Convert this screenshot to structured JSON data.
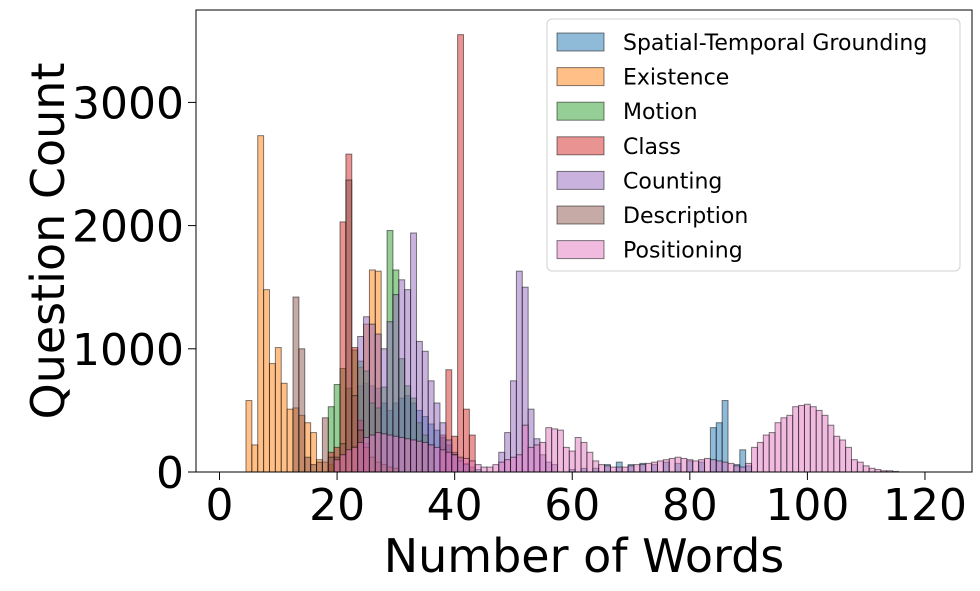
{
  "chart_data": {
    "type": "bar",
    "subtype": "overlaid-histogram",
    "xlabel": "Number of Words",
    "ylabel": "Question Count",
    "xlim": [
      -4,
      128
    ],
    "ylim": [
      0,
      3750
    ],
    "xticks": [
      0,
      20,
      40,
      60,
      80,
      100,
      120
    ],
    "yticks": [
      0,
      1000,
      2000,
      3000
    ],
    "bin_width": 1,
    "grid": false,
    "legend": {
      "placement": "top-right"
    },
    "series": [
      {
        "name": "Spatial-Temporal Grounding",
        "color": "#1f77b4",
        "bins": [
          [
            24,
            700
          ],
          [
            25,
            720
          ],
          [
            26,
            700
          ],
          [
            27,
            680
          ],
          [
            28,
            560
          ],
          [
            29,
            500
          ],
          [
            30,
            560
          ],
          [
            31,
            600
          ],
          [
            32,
            620
          ],
          [
            33,
            560
          ],
          [
            34,
            500
          ],
          [
            35,
            450
          ],
          [
            36,
            390
          ],
          [
            37,
            340
          ],
          [
            38,
            280
          ],
          [
            39,
            220
          ],
          [
            40,
            160
          ],
          [
            41,
            110
          ],
          [
            42,
            70
          ],
          [
            43,
            40
          ],
          [
            44,
            20
          ],
          [
            60,
            20
          ],
          [
            62,
            30
          ],
          [
            64,
            30
          ],
          [
            66,
            60
          ],
          [
            68,
            80
          ],
          [
            70,
            60
          ],
          [
            72,
            70
          ],
          [
            74,
            60
          ],
          [
            76,
            80
          ],
          [
            78,
            70
          ],
          [
            80,
            90
          ],
          [
            82,
            80
          ],
          [
            84,
            360
          ],
          [
            85,
            400
          ],
          [
            86,
            580
          ],
          [
            88,
            60
          ],
          [
            89,
            180
          ],
          [
            90,
            50
          ]
        ]
      },
      {
        "name": "Existence",
        "color": "#ff7f0e",
        "bins": [
          [
            5,
            580
          ],
          [
            6,
            220
          ],
          [
            7,
            2730
          ],
          [
            8,
            1480
          ],
          [
            9,
            880
          ],
          [
            10,
            1010
          ],
          [
            11,
            720
          ],
          [
            12,
            510
          ],
          [
            13,
            520
          ],
          [
            14,
            460
          ],
          [
            15,
            400
          ],
          [
            16,
            320
          ],
          [
            17,
            100
          ],
          [
            18,
            80
          ],
          [
            19,
            60
          ],
          [
            20,
            100
          ],
          [
            21,
            140
          ],
          [
            22,
            160
          ],
          [
            23,
            210
          ],
          [
            24,
            850
          ],
          [
            25,
            1200
          ],
          [
            26,
            1640
          ],
          [
            27,
            1630
          ]
        ]
      },
      {
        "name": "Motion",
        "color": "#2ca02c",
        "bins": [
          [
            19,
            530
          ],
          [
            20,
            710
          ],
          [
            21,
            840
          ],
          [
            22,
            680
          ],
          [
            23,
            990
          ],
          [
            24,
            900
          ],
          [
            25,
            820
          ],
          [
            26,
            560
          ],
          [
            27,
            520
          ],
          [
            28,
            690
          ],
          [
            29,
            1960
          ],
          [
            30,
            1640
          ],
          [
            31,
            920
          ],
          [
            32,
            700
          ],
          [
            33,
            600
          ],
          [
            34,
            400
          ],
          [
            35,
            300
          ],
          [
            36,
            220
          ]
        ]
      },
      {
        "name": "Class",
        "color": "#d62728",
        "bins": [
          [
            19,
            160
          ],
          [
            20,
            200
          ],
          [
            21,
            2030
          ],
          [
            22,
            2580
          ],
          [
            23,
            1010
          ],
          [
            24,
            420
          ],
          [
            25,
            230
          ],
          [
            38,
            300
          ],
          [
            39,
            830
          ],
          [
            40,
            290
          ],
          [
            41,
            3550
          ],
          [
            42,
            510
          ],
          [
            43,
            300
          ]
        ]
      },
      {
        "name": "Counting",
        "color": "#9467bd",
        "bins": [
          [
            24,
            1100
          ],
          [
            25,
            1260
          ],
          [
            26,
            1200
          ],
          [
            27,
            1120
          ],
          [
            28,
            1000
          ],
          [
            29,
            1220
          ],
          [
            30,
            1440
          ],
          [
            31,
            1560
          ],
          [
            32,
            1480
          ],
          [
            33,
            1940
          ],
          [
            34,
            1060
          ],
          [
            35,
            980
          ],
          [
            36,
            740
          ],
          [
            37,
            560
          ],
          [
            38,
            400
          ],
          [
            39,
            260
          ],
          [
            40,
            140
          ],
          [
            41,
            90
          ],
          [
            42,
            60
          ],
          [
            48,
            160
          ],
          [
            49,
            320
          ],
          [
            50,
            740
          ],
          [
            51,
            1630
          ],
          [
            52,
            1500
          ],
          [
            53,
            510
          ],
          [
            54,
            270
          ],
          [
            55,
            140
          ],
          [
            56,
            80
          ],
          [
            57,
            60
          ]
        ]
      },
      {
        "name": "Description",
        "color": "#8c564b",
        "bins": [
          [
            13,
            1420
          ],
          [
            14,
            1000
          ],
          [
            15,
            120
          ],
          [
            16,
            60
          ],
          [
            17,
            80
          ],
          [
            18,
            440
          ],
          [
            19,
            120
          ],
          [
            20,
            120
          ],
          [
            21,
            230
          ],
          [
            22,
            2370
          ],
          [
            23,
            620
          ],
          [
            24,
            340
          ],
          [
            25,
            200
          ],
          [
            26,
            120
          ],
          [
            27,
            80
          ],
          [
            28,
            60
          ],
          [
            29,
            40
          ],
          [
            30,
            30
          ]
        ]
      },
      {
        "name": "Positioning",
        "color": "#e377c2",
        "bins": [
          [
            20,
            100
          ],
          [
            21,
            140
          ],
          [
            22,
            180
          ],
          [
            23,
            200
          ],
          [
            24,
            240
          ],
          [
            25,
            280
          ],
          [
            26,
            300
          ],
          [
            27,
            320
          ],
          [
            28,
            310
          ],
          [
            29,
            300
          ],
          [
            30,
            290
          ],
          [
            31,
            280
          ],
          [
            32,
            270
          ],
          [
            33,
            260
          ],
          [
            34,
            250
          ],
          [
            35,
            240
          ],
          [
            36,
            220
          ],
          [
            37,
            200
          ],
          [
            38,
            180
          ],
          [
            39,
            160
          ],
          [
            40,
            140
          ],
          [
            41,
            120
          ],
          [
            42,
            110
          ],
          [
            43,
            90
          ],
          [
            44,
            60
          ],
          [
            45,
            40
          ],
          [
            46,
            40
          ],
          [
            47,
            60
          ],
          [
            48,
            80
          ],
          [
            49,
            100
          ],
          [
            50,
            120
          ],
          [
            51,
            140
          ],
          [
            52,
            380
          ],
          [
            53,
            200
          ],
          [
            54,
            220
          ],
          [
            55,
            240
          ],
          [
            56,
            360
          ],
          [
            57,
            350
          ],
          [
            58,
            340
          ],
          [
            59,
            200
          ],
          [
            60,
            170
          ],
          [
            61,
            280
          ],
          [
            62,
            240
          ],
          [
            63,
            160
          ],
          [
            64,
            90
          ],
          [
            65,
            60
          ],
          [
            66,
            50
          ],
          [
            67,
            40
          ],
          [
            68,
            40
          ],
          [
            69,
            40
          ],
          [
            70,
            50
          ],
          [
            71,
            60
          ],
          [
            72,
            60
          ],
          [
            73,
            70
          ],
          [
            74,
            80
          ],
          [
            75,
            90
          ],
          [
            76,
            100
          ],
          [
            77,
            110
          ],
          [
            78,
            120
          ],
          [
            79,
            110
          ],
          [
            80,
            100
          ],
          [
            81,
            90
          ],
          [
            82,
            100
          ],
          [
            83,
            110
          ],
          [
            84,
            100
          ],
          [
            85,
            90
          ],
          [
            86,
            80
          ],
          [
            87,
            70
          ],
          [
            88,
            50
          ],
          [
            89,
            40
          ],
          [
            90,
            70
          ],
          [
            91,
            200
          ],
          [
            92,
            240
          ],
          [
            93,
            300
          ],
          [
            94,
            320
          ],
          [
            95,
            400
          ],
          [
            96,
            440
          ],
          [
            97,
            460
          ],
          [
            98,
            530
          ],
          [
            99,
            540
          ],
          [
            100,
            550
          ],
          [
            101,
            530
          ],
          [
            102,
            500
          ],
          [
            103,
            460
          ],
          [
            104,
            380
          ],
          [
            105,
            290
          ],
          [
            106,
            260
          ],
          [
            107,
            200
          ],
          [
            108,
            100
          ],
          [
            109,
            80
          ],
          [
            110,
            50
          ],
          [
            111,
            30
          ],
          [
            112,
            20
          ],
          [
            113,
            10
          ],
          [
            114,
            10
          ],
          [
            115,
            5
          ]
        ]
      }
    ]
  }
}
